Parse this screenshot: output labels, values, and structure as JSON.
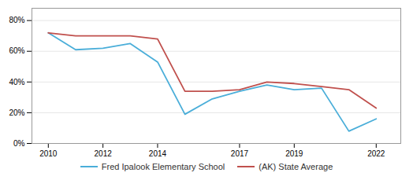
{
  "chart_data": {
    "type": "line",
    "x": [
      2010,
      2011,
      2012,
      2013,
      2014,
      2015,
      2016,
      2017,
      2018,
      2019,
      2020,
      2021,
      2022
    ],
    "series": [
      {
        "name": "Fred Ipalook Elementary School",
        "color": "#4aaed9",
        "values": [
          0.72,
          0.61,
          0.62,
          0.65,
          0.53,
          0.19,
          0.29,
          0.34,
          0.38,
          0.35,
          0.36,
          0.08,
          0.16
        ]
      },
      {
        "name": "(AK) State Average",
        "color": "#c0504d",
        "values": [
          0.72,
          0.7,
          0.7,
          0.7,
          0.68,
          0.34,
          0.34,
          0.35,
          0.4,
          0.39,
          0.37,
          0.35,
          0.23
        ]
      }
    ],
    "xlim": [
      2009.4,
      2022.9
    ],
    "xticks": [
      2010,
      2012,
      2014,
      2017,
      2019,
      2022
    ],
    "ylim": [
      0,
      0.88
    ],
    "yticks": [
      {
        "value": 0,
        "label": "0%"
      },
      {
        "value": 0.2,
        "label": "20%"
      },
      {
        "value": 0.4,
        "label": "40%"
      },
      {
        "value": 0.6,
        "label": "60%"
      },
      {
        "value": 0.8,
        "label": "80%"
      }
    ],
    "grid": true,
    "legend": "bottom"
  }
}
